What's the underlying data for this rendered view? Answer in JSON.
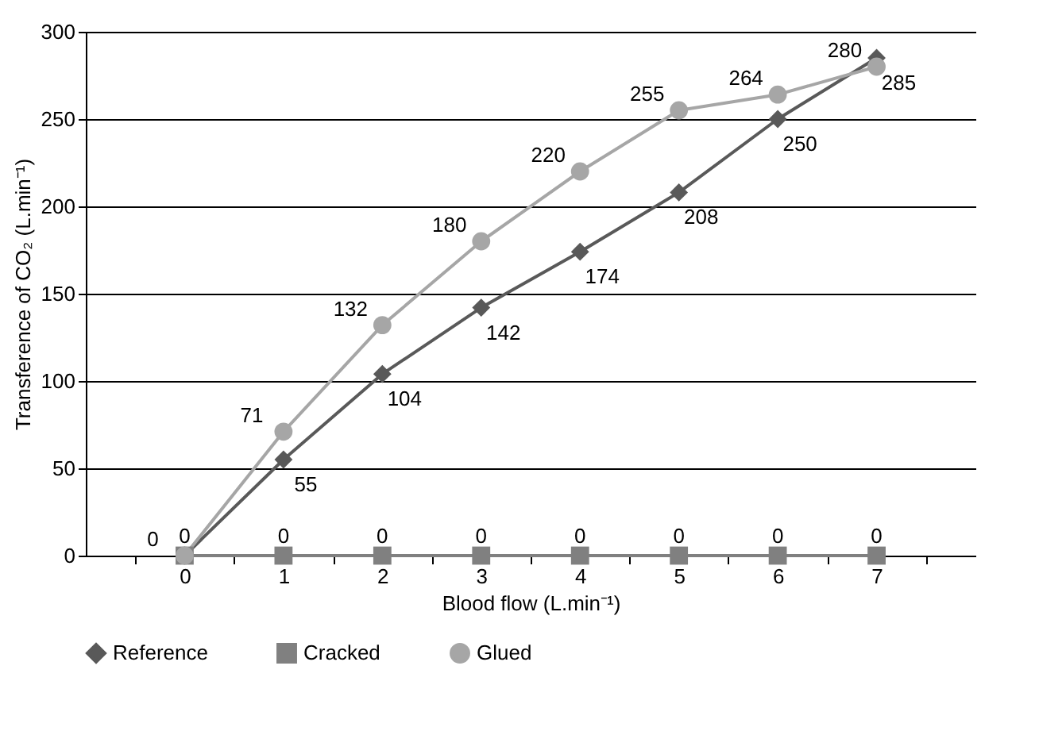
{
  "chart_data": {
    "type": "line",
    "xlabel": "Blood flow (L.min⁻¹)",
    "ylabel": "Transference of CO₂ (L.min⁻¹)",
    "categories": [
      "0",
      "1",
      "2",
      "3",
      "4",
      "5",
      "6",
      "7"
    ],
    "ylim": [
      0,
      300
    ],
    "yticks": [
      0,
      50,
      100,
      150,
      200,
      250,
      300
    ],
    "grid": "y",
    "legend": "bottom",
    "series": [
      {
        "name": "Reference",
        "color": "#595959",
        "marker": "diamond",
        "values": [
          0,
          55,
          104,
          142,
          174,
          208,
          250,
          285
        ],
        "value_labels": [
          null,
          "55",
          "104",
          "142",
          "174",
          "208",
          "250",
          "285"
        ]
      },
      {
        "name": "Cracked",
        "color": "#808080",
        "marker": "square",
        "values": [
          0,
          0,
          0,
          0,
          0,
          0,
          0,
          0
        ],
        "value_labels": [
          "0",
          "0",
          "0",
          "0",
          "0",
          "0",
          "0",
          "0"
        ]
      },
      {
        "name": "Glued",
        "color": "#a6a6a6",
        "marker": "circle",
        "values": [
          0,
          71,
          132,
          180,
          220,
          255,
          264,
          280
        ],
        "value_labels": [
          "0",
          "71",
          "132",
          "180",
          "220",
          "255",
          "264",
          "280"
        ]
      }
    ]
  }
}
